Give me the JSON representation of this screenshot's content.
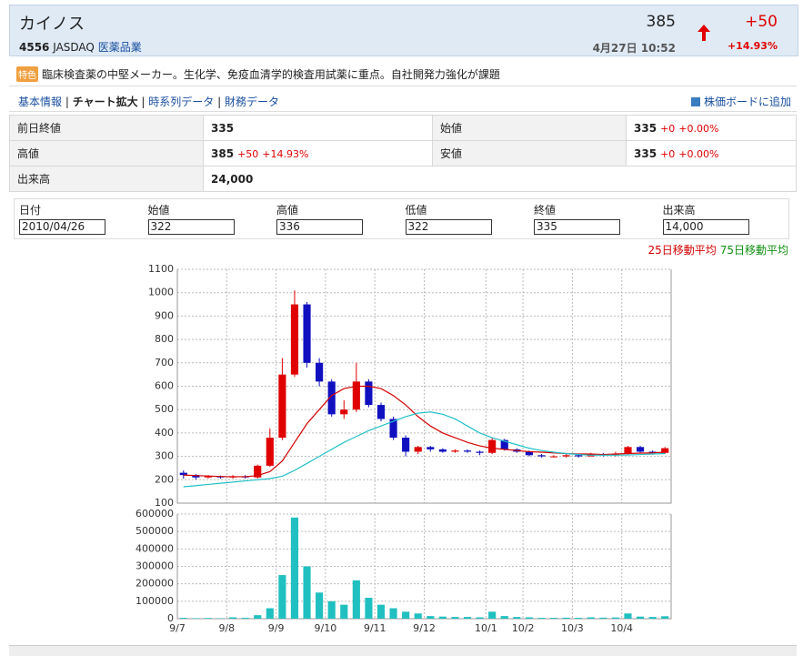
{
  "header": {
    "name": "カイノス",
    "code": "4556",
    "market": "JASDAQ",
    "sector": "医薬品業",
    "price": "385",
    "change": "+50",
    "datetime": "4月27日 10:52",
    "change_pct": "+14.93%"
  },
  "feature": {
    "tag": "特色",
    "text": "臨床検査薬の中堅メーカー。生化学、免疫血清学的検査用試薬に重点。自社開発力強化が課題"
  },
  "nav": {
    "links": [
      "基本情報",
      "チャート拡大",
      "時系列データ",
      "財務データ"
    ],
    "add_board": "株価ボードに追加"
  },
  "quote_table": {
    "rows": [
      {
        "cells": [
          {
            "label": "前日終値",
            "value": "335"
          },
          {
            "label": "始値",
            "value": "335",
            "change": "+0",
            "pct": "+0.00%"
          }
        ]
      },
      {
        "cells": [
          {
            "label": "高値",
            "value": "385",
            "change": "+50",
            "pct": "+14.93%"
          },
          {
            "label": "安値",
            "value": "335",
            "change": "+0",
            "pct": "+0.00%"
          }
        ]
      },
      {
        "cells": [
          {
            "label": "出来高",
            "value": "24,000"
          }
        ]
      }
    ]
  },
  "daily_form": {
    "fields": [
      {
        "label": "日付",
        "value": "2010/04/26"
      },
      {
        "label": "始値",
        "value": "322"
      },
      {
        "label": "高値",
        "value": "336"
      },
      {
        "label": "低値",
        "value": "322"
      },
      {
        "label": "終値",
        "value": "335"
      },
      {
        "label": "出来高",
        "value": "14,000"
      }
    ]
  },
  "chart_data": [
    {
      "type": "candlestick",
      "open": [
        230,
        220,
        210,
        215,
        210,
        215,
        210,
        260,
        380,
        650,
        950,
        700,
        620,
        480,
        500,
        620,
        520,
        460,
        380,
        320,
        340,
        330,
        320,
        325,
        320,
        315,
        370,
        330,
        320,
        305,
        300,
        300,
        305,
        300,
        310,
        305,
        310,
        340,
        320,
        315
      ],
      "high": [
        240,
        225,
        220,
        218,
        220,
        220,
        265,
        420,
        720,
        1010,
        960,
        720,
        630,
        540,
        700,
        630,
        530,
        470,
        390,
        345,
        345,
        335,
        330,
        330,
        325,
        380,
        375,
        335,
        325,
        310,
        305,
        310,
        310,
        315,
        315,
        320,
        345,
        345,
        325,
        340
      ],
      "low": [
        205,
        200,
        205,
        205,
        205,
        205,
        205,
        255,
        370,
        640,
        680,
        600,
        470,
        460,
        490,
        510,
        450,
        370,
        300,
        310,
        320,
        315,
        315,
        315,
        305,
        310,
        325,
        315,
        300,
        295,
        295,
        295,
        295,
        300,
        300,
        300,
        305,
        315,
        310,
        310
      ],
      "close": [
        220,
        210,
        215,
        210,
        215,
        210,
        260,
        380,
        650,
        950,
        700,
        620,
        480,
        500,
        620,
        520,
        460,
        380,
        320,
        340,
        330,
        320,
        325,
        320,
        315,
        370,
        330,
        320,
        305,
        300,
        300,
        305,
        300,
        310,
        305,
        310,
        340,
        320,
        315,
        335
      ],
      "up_color": "#e00000",
      "down_color": "#1010c0",
      "series": [
        {
          "name": "25日移動平均",
          "color": "#d40000",
          "values": [
            220,
            218,
            216,
            214,
            213,
            213,
            218,
            235,
            280,
            360,
            440,
            500,
            560,
            590,
            600,
            600,
            590,
            560,
            520,
            470,
            430,
            400,
            380,
            360,
            345,
            335,
            330,
            325,
            320,
            318,
            315,
            312,
            310,
            310,
            308,
            310,
            312,
            314,
            315,
            318
          ]
        },
        {
          "name": "75日移動平均",
          "color": "#20c0c8",
          "values": [
            170,
            175,
            180,
            185,
            190,
            195,
            200,
            205,
            215,
            240,
            270,
            300,
            330,
            360,
            385,
            410,
            430,
            450,
            470,
            485,
            490,
            480,
            460,
            430,
            400,
            380,
            365,
            350,
            335,
            325,
            318,
            312,
            308,
            305,
            305,
            305,
            306,
            308,
            310,
            312
          ]
        }
      ],
      "xlim": [
        0,
        40
      ],
      "ylim": [
        100,
        1100
      ],
      "yticks": [
        100,
        200,
        300,
        400,
        500,
        600,
        700,
        800,
        900,
        1000,
        1100
      ],
      "grid": true
    },
    {
      "type": "bar",
      "values": [
        5000,
        3000,
        4000,
        2000,
        8000,
        5000,
        20000,
        60000,
        250000,
        580000,
        300000,
        150000,
        100000,
        80000,
        220000,
        120000,
        80000,
        60000,
        40000,
        30000,
        15000,
        12000,
        10000,
        10000,
        8000,
        40000,
        15000,
        10000,
        8000,
        5000,
        5000,
        6000,
        5000,
        8000,
        6000,
        7000,
        30000,
        12000,
        10000,
        14000
      ],
      "color": "#20c0c0",
      "xlim": [
        0,
        40
      ],
      "ylim": [
        0,
        600000
      ],
      "yticks": [
        0,
        100000,
        200000,
        300000,
        400000,
        500000,
        600000
      ],
      "xticks": [
        {
          "value": 0,
          "label": "9/7"
        },
        {
          "value": 4,
          "label": "9/8"
        },
        {
          "value": 8,
          "label": "9/9"
        },
        {
          "value": 12,
          "label": "9/10"
        },
        {
          "value": 16,
          "label": "9/11"
        },
        {
          "value": 20,
          "label": "9/12"
        },
        {
          "value": 25,
          "label": "10/1"
        },
        {
          "value": 28,
          "label": "10/2"
        },
        {
          "value": 32,
          "label": "10/3"
        },
        {
          "value": 36,
          "label": "10/4"
        }
      ],
      "grid": true
    }
  ]
}
